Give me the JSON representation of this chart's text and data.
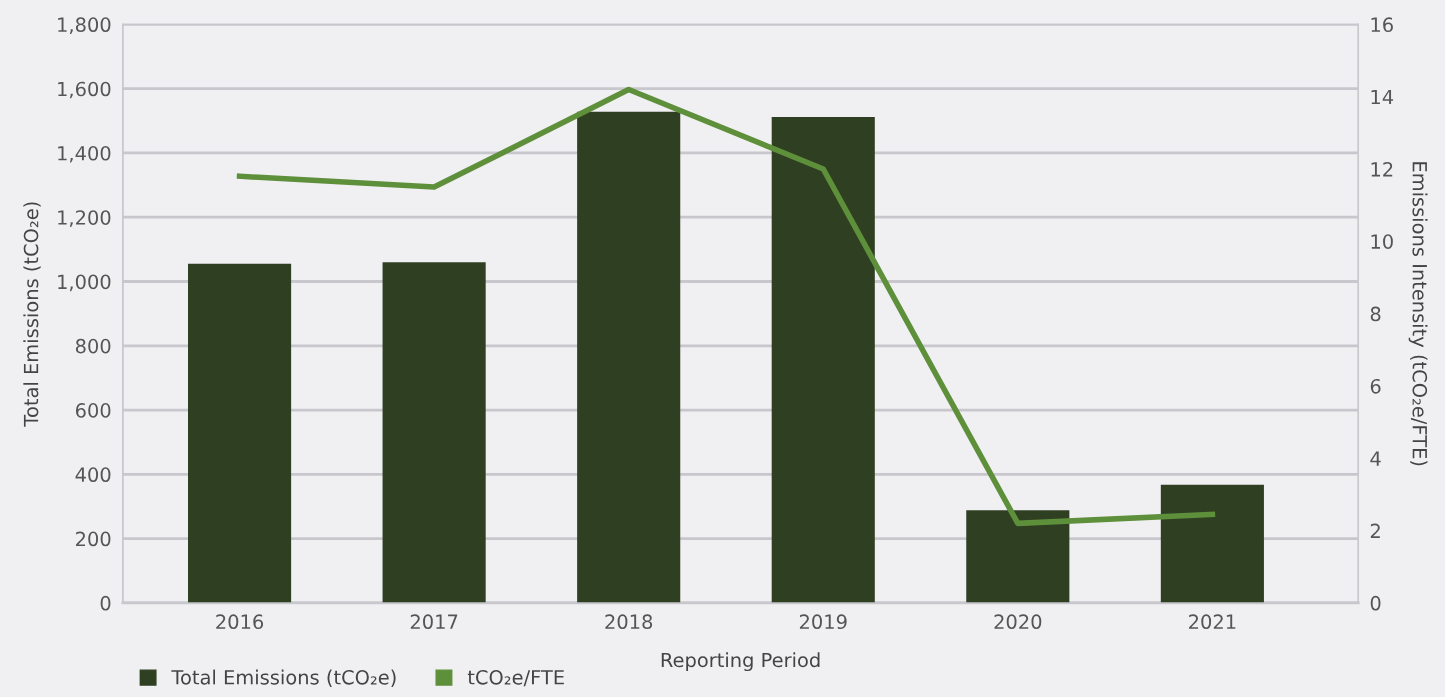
{
  "chart_data": {
    "type": "bar",
    "xlabel": "Reporting Period",
    "ylabel": "Total Emissions (tCO₂e)",
    "y2label": "Emissions Intensity (tCO₂e/FTE)",
    "categories": [
      "2016",
      "2017",
      "2018",
      "2019",
      "2020",
      "2021"
    ],
    "series": [
      {
        "name": "Total Emissions (tCO₂e)",
        "color": "#2f3f22",
        "values": [
          1055,
          1060,
          1528,
          1512,
          288,
          368
        ]
      },
      {
        "name": "tCO₂e/FTE",
        "type": "line",
        "axis": "y2",
        "color": "#5e8f3a",
        "values": [
          11.8,
          11.5,
          14.2,
          12.0,
          2.2,
          2.45
        ]
      }
    ],
    "ylim": [
      0,
      1800
    ],
    "yticks": [
      0,
      {
        "value": 200,
        "label": "200"
      },
      {
        "value": 400,
        "label": "400"
      },
      {
        "value": 600,
        "label": "600"
      },
      {
        "value": 800,
        "label": "800"
      },
      {
        "value": 1000,
        "label": "1,000"
      },
      {
        "value": 1200,
        "label": "1,200"
      },
      {
        "value": 1400,
        "label": "1,400"
      },
      {
        "value": 1600,
        "label": "1,600"
      },
      {
        "value": 1800,
        "label": "1,800"
      }
    ],
    "y2lim": [
      0,
      16
    ],
    "y2ticks": [
      0,
      2,
      4,
      6,
      8,
      10,
      12,
      14,
      16
    ],
    "grid": "y",
    "legend": "bottom left",
    "marker": "none",
    "line_style": "solid"
  }
}
